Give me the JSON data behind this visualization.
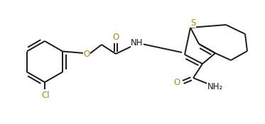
{
  "bg_color": "#ffffff",
  "bond_color": "#1a1a1a",
  "hetero_color": "#b8860b",
  "label_S": "S",
  "label_O_ether": "O",
  "label_O_co1": "O",
  "label_O_co2": "O",
  "label_NH": "NH",
  "label_NH2": "NH₂",
  "label_Cl": "Cl",
  "figsize": [
    3.73,
    1.75
  ],
  "dpi": 100
}
